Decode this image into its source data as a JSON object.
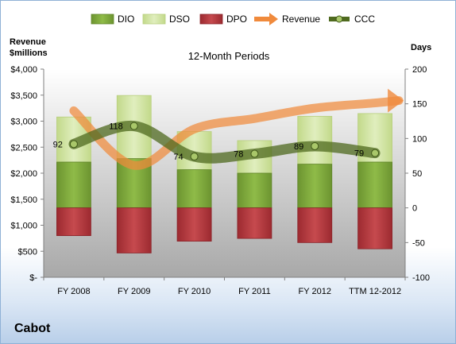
{
  "chart_data": {
    "type": "bar",
    "title": "12-Month Periods",
    "company": "Cabot",
    "categories": [
      "FY 2008",
      "FY 2009",
      "FY 2010",
      "FY 2011",
      "FY 2012",
      "TTM 12-2012"
    ],
    "left_axis": {
      "label_line1": "Revenue",
      "label_line2": "$millions",
      "range": [
        0,
        4000
      ],
      "ticks": [
        0,
        500,
        1000,
        1500,
        2000,
        2500,
        3000,
        3500,
        4000
      ],
      "tick_labels": [
        "$-",
        "$500",
        "$1,000",
        "$1,500",
        "$2,000",
        "$2,500",
        "$3,000",
        "$3,500",
        "$4,000"
      ]
    },
    "right_axis": {
      "label": "Days",
      "range": [
        -100,
        200
      ],
      "ticks": [
        -100,
        -50,
        0,
        50,
        100,
        150,
        200
      ],
      "tick_labels": [
        "-100",
        "-50",
        "0",
        "50",
        "100",
        "150",
        "200"
      ]
    },
    "legend": [
      "DIO",
      "DSO",
      "DPO",
      "Revenue",
      "CCC"
    ],
    "legend_position": "top",
    "colors": {
      "DIO": "#7da83a",
      "DSO": "#d3e6a3",
      "DPO": "#b3343a",
      "Revenue": "#f08a3c",
      "CCC": "#4f6a1f"
    },
    "series": [
      {
        "name": "DIO",
        "axis": "right",
        "values": [
          66,
          71,
          55,
          50,
          63,
          66
        ]
      },
      {
        "name": "DSO",
        "axis": "right",
        "values": [
          65,
          91,
          55,
          47,
          69,
          70
        ]
      },
      {
        "name": "DPO",
        "axis": "right",
        "values": [
          -40,
          -65,
          -48,
          -44,
          -50,
          -59
        ]
      },
      {
        "name": "Revenue",
        "axis": "left",
        "values": [
          3200,
          2150,
          2850,
          3050,
          3250,
          3350
        ]
      },
      {
        "name": "CCC",
        "axis": "right",
        "values": [
          92,
          118,
          74,
          78,
          89,
          79
        ]
      }
    ],
    "ccc_labels": [
      "92",
      "118",
      "74",
      "78",
      "89",
      "79"
    ],
    "grid": false
  }
}
